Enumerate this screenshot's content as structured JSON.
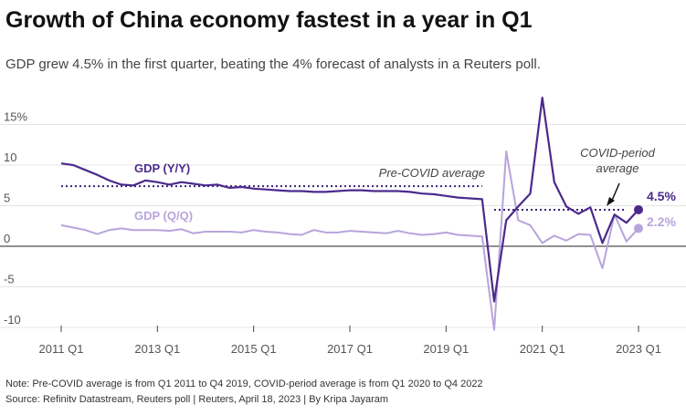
{
  "header": {
    "title": "Growth of China economy fastest in a year in Q1",
    "subtitle": "GDP grew 4.5% in the first quarter, beating the 4% forecast of analysts in a Reuters poll."
  },
  "footer": {
    "note": "Note: Pre-COVID average is from Q1 2011 to Q4 2019, COVID-period average is from Q1 2020 to Q4 2022",
    "source": "Source: Refinitv Datastream, Reuters poll | Reuters, April 18, 2023 | By Kripa Jayaram"
  },
  "chart_data": {
    "type": "line",
    "ylim": [
      -11,
      18
    ],
    "y_ticks": [
      {
        "value": 15,
        "label": "15%"
      },
      {
        "value": 10,
        "label": "10"
      },
      {
        "value": 5,
        "label": "5"
      },
      {
        "value": 0,
        "label": "0"
      },
      {
        "value": -5,
        "label": "-5"
      },
      {
        "value": -10,
        "label": "-10"
      }
    ],
    "x_ticks": [
      "2011 Q1",
      "2013 Q1",
      "2015 Q1",
      "2017 Q1",
      "2019 Q1",
      "2021 Q1",
      "2023 Q1"
    ],
    "categories": [
      "2011 Q1",
      "2011 Q2",
      "2011 Q3",
      "2011 Q4",
      "2012 Q1",
      "2012 Q2",
      "2012 Q3",
      "2012 Q4",
      "2013 Q1",
      "2013 Q2",
      "2013 Q3",
      "2013 Q4",
      "2014 Q1",
      "2014 Q2",
      "2014 Q3",
      "2014 Q4",
      "2015 Q1",
      "2015 Q2",
      "2015 Q3",
      "2015 Q4",
      "2016 Q1",
      "2016 Q2",
      "2016 Q3",
      "2016 Q4",
      "2017 Q1",
      "2017 Q2",
      "2017 Q3",
      "2017 Q4",
      "2018 Q1",
      "2018 Q2",
      "2018 Q3",
      "2018 Q4",
      "2019 Q1",
      "2019 Q2",
      "2019 Q3",
      "2019 Q4",
      "2020 Q1",
      "2020 Q2",
      "2020 Q3",
      "2020 Q4",
      "2021 Q1",
      "2021 Q2",
      "2021 Q3",
      "2021 Q4",
      "2022 Q1",
      "2022 Q2",
      "2022 Q3",
      "2022 Q4",
      "2023 Q1"
    ],
    "series": [
      {
        "name": "GDP (Y/Y)",
        "color": "#4b2a8c",
        "values": [
          10.2,
          10.0,
          9.4,
          8.8,
          8.1,
          7.6,
          7.5,
          8.1,
          7.9,
          7.6,
          7.9,
          7.7,
          7.5,
          7.6,
          7.2,
          7.3,
          7.1,
          7.0,
          6.9,
          6.8,
          6.8,
          6.7,
          6.7,
          6.8,
          6.9,
          6.9,
          6.8,
          6.8,
          6.8,
          6.7,
          6.5,
          6.4,
          6.2,
          6.0,
          5.9,
          5.8,
          -6.8,
          3.2,
          4.9,
          6.5,
          18.3,
          7.9,
          4.9,
          4.0,
          4.8,
          0.4,
          3.9,
          2.9,
          4.5
        ],
        "end_label": "4.5%"
      },
      {
        "name": "GDP (Q/Q)",
        "color": "#b8a4dc",
        "values": [
          2.6,
          2.3,
          2.0,
          1.5,
          2.0,
          2.2,
          2.0,
          2.0,
          2.0,
          1.9,
          2.1,
          1.6,
          1.8,
          1.8,
          1.8,
          1.7,
          2.0,
          1.8,
          1.7,
          1.5,
          1.4,
          2.0,
          1.7,
          1.7,
          1.9,
          1.8,
          1.7,
          1.6,
          1.9,
          1.6,
          1.4,
          1.5,
          1.7,
          1.4,
          1.3,
          1.2,
          -10.3,
          11.7,
          3.2,
          2.6,
          0.4,
          1.3,
          0.7,
          1.5,
          1.4,
          -2.7,
          3.9,
          0.6,
          2.2
        ],
        "end_label": "2.2%"
      }
    ],
    "annotations": [
      {
        "label": "Pre-COVID average",
        "value": 7.4,
        "from": "2011 Q1",
        "to": "2019 Q4"
      },
      {
        "label": "COVID-period average",
        "label_lines": [
          "COVID-period",
          "average"
        ],
        "value": 4.5,
        "from": "2020 Q1",
        "to": "2022 Q4"
      }
    ]
  }
}
